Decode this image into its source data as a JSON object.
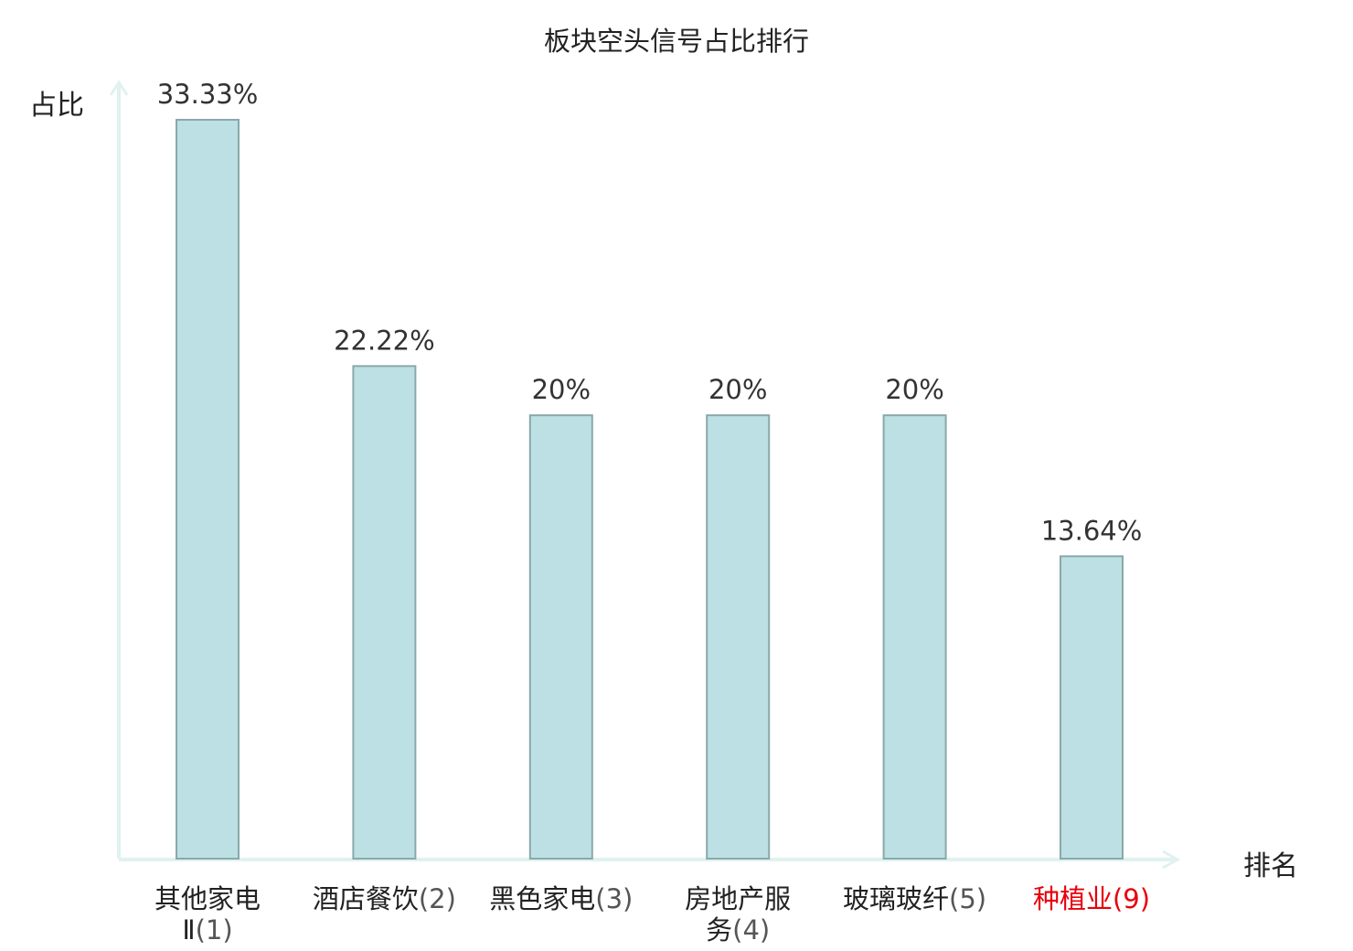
{
  "chart_data": {
    "type": "bar",
    "title": "板块空头信号占比排行",
    "xlabel": "排名",
    "ylabel": "占比",
    "categories": [
      {
        "name": "其他家电Ⅱ",
        "rank": "(1)",
        "highlight": false
      },
      {
        "name": "酒店餐饮",
        "rank": "(2)",
        "highlight": false
      },
      {
        "name": "黑色家电",
        "rank": "(3)",
        "highlight": false
      },
      {
        "name": "房地产服务",
        "rank": "(4)",
        "highlight": false
      },
      {
        "name": "玻璃玻纤",
        "rank": "(5)",
        "highlight": false
      },
      {
        "name": "种植业",
        "rank": "(9)",
        "highlight": true
      }
    ],
    "values": [
      33.33,
      22.22,
      20,
      20,
      20,
      13.64
    ],
    "value_labels": [
      "33.33%",
      "22.22%",
      "20%",
      "20%",
      "20%",
      "13.64%"
    ],
    "ylim": [
      0,
      33.33
    ],
    "grid": false,
    "colors": {
      "bar_fill": "#bce0e3",
      "bar_stroke": "#8aa8ab",
      "axis": "#dff2ef",
      "highlight_label": "#e8000b"
    }
  }
}
